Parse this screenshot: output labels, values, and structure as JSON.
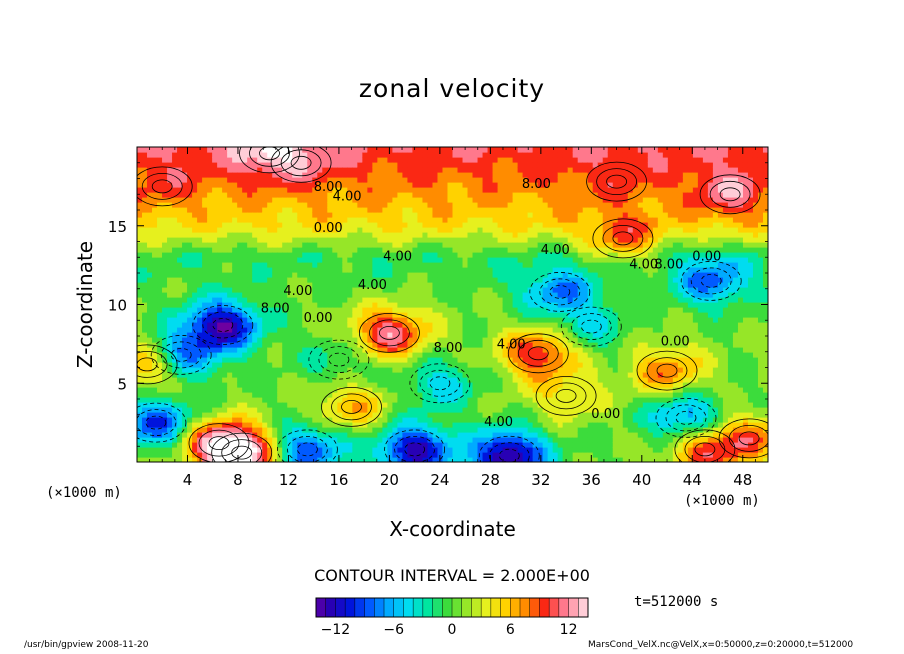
{
  "chart_data": {
    "type": "heatmap",
    "title": "zonal velocity",
    "xlabel": "X-coordinate",
    "ylabel": "Z-coordinate",
    "x_unit": "(×1000 m)",
    "y_unit": "(×1000 m)",
    "xlim": [
      0,
      50
    ],
    "ylim": [
      0,
      20
    ],
    "x_ticks": [
      4,
      8,
      12,
      16,
      20,
      24,
      28,
      32,
      36,
      40,
      44,
      48
    ],
    "y_ticks": [
      5,
      10,
      15
    ],
    "contour_interval": "CONTOUR INTERVAL = 2.000E+00",
    "time": "t=512000 s",
    "colorbar": {
      "min": -14,
      "max": 14,
      "ticks": [
        -12,
        -6,
        0,
        6,
        12
      ]
    },
    "contour_labels": [
      {
        "text": "8.00",
        "x": 14.0,
        "z": 17.2
      },
      {
        "text": "4.00",
        "x": 15.5,
        "z": 16.6
      },
      {
        "text": "8.00",
        "x": 30.5,
        "z": 17.4
      },
      {
        "text": "0.00",
        "x": 14.0,
        "z": 14.6
      },
      {
        "text": "4.00",
        "x": 19.5,
        "z": 12.8
      },
      {
        "text": "4.00",
        "x": 32.0,
        "z": 13.2
      },
      {
        "text": "4.00",
        "x": 39.0,
        "z": 12.3
      },
      {
        "text": "8.00",
        "x": 41.0,
        "z": 12.3
      },
      {
        "text": "0.00",
        "x": 44.0,
        "z": 12.8
      },
      {
        "text": "4.00",
        "x": 17.5,
        "z": 11.0
      },
      {
        "text": "8.00",
        "x": 9.8,
        "z": 9.5
      },
      {
        "text": "4.00",
        "x": 11.6,
        "z": 10.6
      },
      {
        "text": "0.00",
        "x": 13.2,
        "z": 8.9
      },
      {
        "text": "8.00",
        "x": 23.5,
        "z": 7.0
      },
      {
        "text": "4.00",
        "x": 28.5,
        "z": 7.2
      },
      {
        "text": "0.00",
        "x": 41.5,
        "z": 7.4
      },
      {
        "text": "0.00",
        "x": 36.0,
        "z": 2.8
      },
      {
        "text": "4.00",
        "x": 27.5,
        "z": 2.3
      }
    ],
    "features": [
      {
        "x": 6.8,
        "z": 8.7,
        "value": -12.5
      },
      {
        "x": 3.5,
        "z": 6.8,
        "value": -8.0
      },
      {
        "x": 20.0,
        "z": 8.2,
        "value": 12.5
      },
      {
        "x": 31.8,
        "z": 6.9,
        "value": 11.0
      },
      {
        "x": 29.5,
        "z": 0.4,
        "value": -13.5
      },
      {
        "x": 22.0,
        "z": 0.8,
        "value": -12.0
      },
      {
        "x": 6.5,
        "z": 1.2,
        "value": 11.0
      },
      {
        "x": 8.3,
        "z": 0.6,
        "value": 14.0
      },
      {
        "x": 10.5,
        "z": 19.6,
        "value": 14.5
      },
      {
        "x": 13.0,
        "z": 19.0,
        "value": 12.0
      },
      {
        "x": 47.0,
        "z": 17.0,
        "value": 12.5
      },
      {
        "x": 38.0,
        "z": 17.8,
        "value": 10.0
      },
      {
        "x": 2.0,
        "z": 17.5,
        "value": 10.0
      },
      {
        "x": 38.5,
        "z": 14.2,
        "value": 9.0
      },
      {
        "x": 45.5,
        "z": 11.5,
        "value": -8.0
      },
      {
        "x": 33.5,
        "z": 10.8,
        "value": -7.0
      },
      {
        "x": 42.0,
        "z": 5.8,
        "value": 8.5
      },
      {
        "x": 0.8,
        "z": 6.2,
        "value": 9.0
      },
      {
        "x": 43.5,
        "z": 2.8,
        "value": -7.5
      },
      {
        "x": 45.0,
        "z": 0.8,
        "value": 10.0
      },
      {
        "x": 48.5,
        "z": 1.5,
        "value": 8.0
      },
      {
        "x": 34.0,
        "z": 4.2,
        "value": 5.0
      },
      {
        "x": 17.0,
        "z": 3.5,
        "value": 7.0
      },
      {
        "x": 1.5,
        "z": 2.5,
        "value": -9.0
      },
      {
        "x": 13.5,
        "z": 0.8,
        "value": -9.0
      },
      {
        "x": 24.0,
        "z": 5.0,
        "value": -4.0
      },
      {
        "x": 36.0,
        "z": 8.6,
        "value": -3.0
      },
      {
        "x": 16.0,
        "z": 6.5,
        "value": -2.0
      }
    ]
  },
  "footer": {
    "left": "/usr/bin/gpview  2008-11-20",
    "right": "MarsCond_VelX.nc@VelX,x=0:50000,z=0:20000,t=512000"
  }
}
